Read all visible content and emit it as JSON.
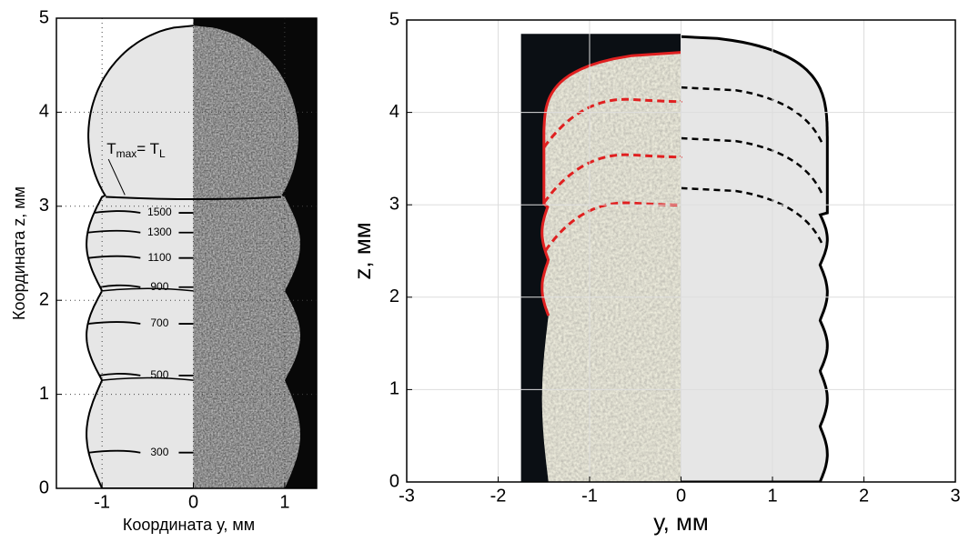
{
  "chart_data": [
    {
      "type": "micrograph",
      "xlabel": "Координата у, мм",
      "ylabel": "Координата z, мм",
      "xlim": [
        -1.5,
        1.35
      ],
      "ylim": [
        0,
        5
      ],
      "xticks": [
        -1,
        0,
        1
      ],
      "yticks": [
        0,
        1,
        2,
        3,
        4,
        5
      ],
      "grid": true,
      "annotation": {
        "parts": [
          "T",
          "max",
          "= T",
          "L"
        ],
        "z": 3.1
      },
      "isotherms": [
        {
          "label": "1500",
          "z": 2.93
        },
        {
          "label": "1300",
          "z": 2.72
        },
        {
          "label": "1100",
          "z": 2.45
        },
        {
          "label": "900",
          "z": 2.14
        },
        {
          "label": "700",
          "z": 1.75
        },
        {
          "label": "500",
          "z": 1.2
        },
        {
          "label": "300",
          "z": 0.38
        }
      ]
    },
    {
      "type": "micrograph",
      "xlabel": "у, мм",
      "ylabel": "z, мм",
      "xlim": [
        -3,
        3
      ],
      "ylim": [
        0,
        5
      ],
      "xticks": [
        -3,
        -2,
        -1,
        0,
        1,
        2,
        3
      ],
      "yticks": [
        0,
        1,
        2,
        3,
        4,
        5
      ],
      "grid": true,
      "measured_color": "#e02020",
      "computed_color": "#000000",
      "computed_boundaries": [
        4.27,
        3.72,
        3.18
      ],
      "measured_boundaries": [
        4.12,
        3.52,
        3.0
      ]
    }
  ]
}
